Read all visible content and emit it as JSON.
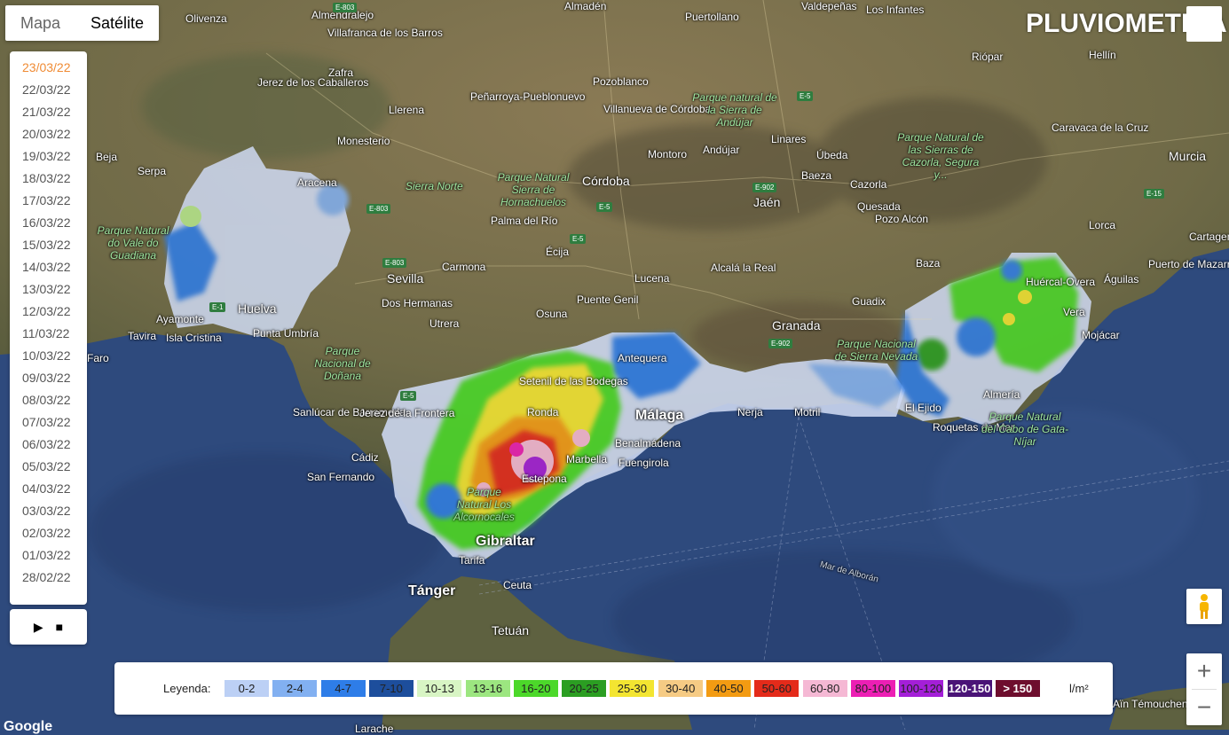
{
  "map_type": {
    "map_label": "Mapa",
    "satellite_label": "Satélite",
    "active": "Satélite"
  },
  "title": "PLUVIOMETRÍA",
  "dates": [
    "23/03/22",
    "22/03/22",
    "21/03/22",
    "20/03/22",
    "19/03/22",
    "18/03/22",
    "17/03/22",
    "16/03/22",
    "15/03/22",
    "14/03/22",
    "13/03/22",
    "12/03/22",
    "11/03/22",
    "10/03/22",
    "09/03/22",
    "08/03/22",
    "07/03/22",
    "06/03/22",
    "05/03/22",
    "04/03/22",
    "03/03/22",
    "02/03/22",
    "01/03/22",
    "28/02/22"
  ],
  "selected_date": "23/03/22",
  "controls": {
    "play": "▶",
    "stop": "■",
    "zoom_in": "+",
    "zoom_out": "−"
  },
  "legend": {
    "label": "Leyenda:",
    "unit": "l/m²",
    "items": [
      {
        "range": "0-2",
        "color": "#bcd0f5",
        "text": "#222"
      },
      {
        "range": "2-4",
        "color": "#82b0f1",
        "text": "#222"
      },
      {
        "range": "4-7",
        "color": "#2e7de8",
        "text": "#222"
      },
      {
        "range": "7-10",
        "color": "#1d4e9c",
        "text": "#222"
      },
      {
        "range": "10-13",
        "color": "#d8f5c4",
        "text": "#222"
      },
      {
        "range": "13-16",
        "color": "#9ce680",
        "text": "#222"
      },
      {
        "range": "16-20",
        "color": "#4cd82a",
        "text": "#222"
      },
      {
        "range": "20-25",
        "color": "#2b9e22",
        "text": "#222"
      },
      {
        "range": "25-30",
        "color": "#f3e531",
        "text": "#222"
      },
      {
        "range": "30-40",
        "color": "#f6cb84",
        "text": "#222"
      },
      {
        "range": "40-50",
        "color": "#f39b12",
        "text": "#222"
      },
      {
        "range": "50-60",
        "color": "#e42b1a",
        "text": "#222"
      },
      {
        "range": "60-80",
        "color": "#f5b8d4",
        "text": "#222"
      },
      {
        "range": "80-100",
        "color": "#ec1fb4",
        "text": "#222"
      },
      {
        "range": "100-120",
        "color": "#a41fd8",
        "text": "#222"
      },
      {
        "range": "120-150",
        "color": "#4a1477",
        "text": "#fff"
      },
      {
        "range": "> 150",
        "color": "#6e0e2e",
        "text": "#fff"
      }
    ]
  },
  "places": [
    {
      "name": "Olivenza",
      "cls": ""
    },
    {
      "name": "Almendralejo",
      "cls": ""
    },
    {
      "name": "Villafranca de los Barros",
      "cls": ""
    },
    {
      "name": "Jerez de los Caballeros",
      "cls": ""
    },
    {
      "name": "Zafra",
      "cls": ""
    },
    {
      "name": "Llerena",
      "cls": ""
    },
    {
      "name": "Peñarroya-Pueblonuevo",
      "cls": ""
    },
    {
      "name": "Pozoblanco",
      "cls": ""
    },
    {
      "name": "Villanueva de Córdoba",
      "cls": ""
    },
    {
      "name": "Puertollano",
      "cls": ""
    },
    {
      "name": "Monesterio",
      "cls": ""
    },
    {
      "name": "Beja",
      "cls": ""
    },
    {
      "name": "Serpa",
      "cls": ""
    },
    {
      "name": "Aracena",
      "cls": ""
    },
    {
      "name": "Córdoba",
      "cls": "big"
    },
    {
      "name": "Palma del Río",
      "cls": ""
    },
    {
      "name": "Montoro",
      "cls": ""
    },
    {
      "name": "Andújar",
      "cls": ""
    },
    {
      "name": "Linares",
      "cls": ""
    },
    {
      "name": "Úbeda",
      "cls": ""
    },
    {
      "name": "Baeza",
      "cls": ""
    },
    {
      "name": "Jaén",
      "cls": "big"
    },
    {
      "name": "Cazorla",
      "cls": ""
    },
    {
      "name": "Quesada",
      "cls": ""
    },
    {
      "name": "Pozo Alcón",
      "cls": ""
    },
    {
      "name": "Riópar",
      "cls": ""
    },
    {
      "name": "Hellín",
      "cls": ""
    },
    {
      "name": "Caravaca de la Cruz",
      "cls": ""
    },
    {
      "name": "Murcia",
      "cls": "big"
    },
    {
      "name": "Lorca",
      "cls": ""
    },
    {
      "name": "Écija",
      "cls": ""
    },
    {
      "name": "Carmona",
      "cls": ""
    },
    {
      "name": "Sevilla",
      "cls": "big"
    },
    {
      "name": "Dos Hermanas",
      "cls": ""
    },
    {
      "name": "Utrera",
      "cls": ""
    },
    {
      "name": "Osuna",
      "cls": ""
    },
    {
      "name": "Lucena",
      "cls": ""
    },
    {
      "name": "Puente Genil",
      "cls": ""
    },
    {
      "name": "Alcalá la Real",
      "cls": ""
    },
    {
      "name": "Granada",
      "cls": "big"
    },
    {
      "name": "Guadix",
      "cls": ""
    },
    {
      "name": "Baza",
      "cls": ""
    },
    {
      "name": "Huércal-Overa",
      "cls": ""
    },
    {
      "name": "Águilas",
      "cls": ""
    },
    {
      "name": "Puerto de Mazarrón",
      "cls": ""
    },
    {
      "name": "Vera",
      "cls": ""
    },
    {
      "name": "Mojácar",
      "cls": ""
    },
    {
      "name": "Huelva",
      "cls": "big"
    },
    {
      "name": "Ayamonte",
      "cls": ""
    },
    {
      "name": "Tavira",
      "cls": ""
    },
    {
      "name": "Isla Cristina",
      "cls": ""
    },
    {
      "name": "Punta Umbría",
      "cls": ""
    },
    {
      "name": "Faro",
      "cls": ""
    },
    {
      "name": "Sanlúcar de Barrameda",
      "cls": ""
    },
    {
      "name": "Jerez de la Frontera",
      "cls": ""
    },
    {
      "name": "Cádiz",
      "cls": ""
    },
    {
      "name": "San Fernando",
      "cls": ""
    },
    {
      "name": "Setenil de las Bodegas",
      "cls": ""
    },
    {
      "name": "Ronda",
      "cls": ""
    },
    {
      "name": "Antequera",
      "cls": ""
    },
    {
      "name": "Málaga",
      "cls": "xl"
    },
    {
      "name": "Benalmádena",
      "cls": ""
    },
    {
      "name": "Fuengirola",
      "cls": ""
    },
    {
      "name": "Marbella",
      "cls": ""
    },
    {
      "name": "Estepona",
      "cls": ""
    },
    {
      "name": "Nerja",
      "cls": ""
    },
    {
      "name": "Motril",
      "cls": ""
    },
    {
      "name": "El Ejido",
      "cls": ""
    },
    {
      "name": "Almería",
      "cls": ""
    },
    {
      "name": "Roquetas de Mar",
      "cls": ""
    },
    {
      "name": "Gibraltar",
      "cls": "xl"
    },
    {
      "name": "Tarifa",
      "cls": ""
    },
    {
      "name": "Tánger",
      "cls": "xl"
    },
    {
      "name": "Ceuta",
      "cls": ""
    },
    {
      "name": "Tetuán",
      "cls": "big"
    },
    {
      "name": "Larache",
      "cls": ""
    },
    {
      "name": "Aïn Témouchent",
      "cls": ""
    },
    {
      "name": "Cartagena",
      "cls": ""
    },
    {
      "name": "Valdepeñas",
      "cls": ""
    },
    {
      "name": "Almadén",
      "cls": ""
    },
    {
      "name": "Los Infantes",
      "cls": ""
    },
    {
      "name": "Parque Natural do Vale do Guadiana",
      "cls": "park"
    },
    {
      "name": "Sierra Norte",
      "cls": "park"
    },
    {
      "name": "Parque Natural Sierra de Hornachuelos",
      "cls": "park"
    },
    {
      "name": "Parque natural de la Sierra de Andújar",
      "cls": "park"
    },
    {
      "name": "Parque Natural de las Sierras de Cazorla, Segura y...",
      "cls": "park"
    },
    {
      "name": "Parque Nacional de Doñana",
      "cls": "park"
    },
    {
      "name": "Parque Nacional de Sierra Nevada",
      "cls": "park"
    },
    {
      "name": "Parque Natural del Cabo de Gata-Níjar",
      "cls": "park"
    },
    {
      "name": "Parque Natural Los Alcornocales",
      "cls": "park"
    },
    {
      "name": "Mar de Alborán",
      "cls": "sea"
    }
  ],
  "roads": [
    "E-803",
    "E-5",
    "E-902",
    "E-15",
    "E-1"
  ],
  "attribution": "Google"
}
